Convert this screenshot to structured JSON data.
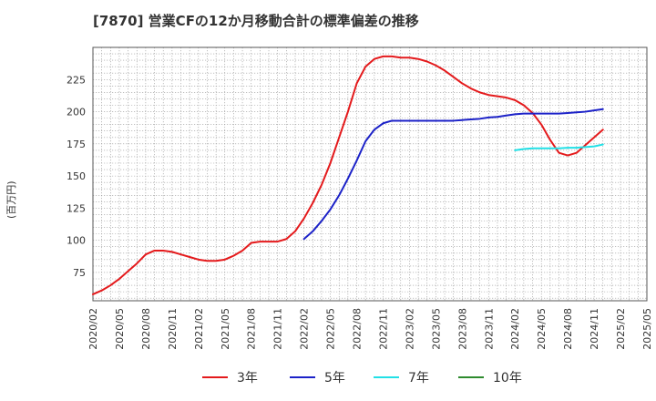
{
  "title": "[7870]  営業CFの12か月移動合計の標準偏差の推移",
  "chart_data": {
    "type": "line",
    "title": "[7870]  営業CFの12か月移動合計の標準偏差の推移",
    "ylabel": "(百万円)",
    "xlabel": "",
    "ylim": [
      53,
      250
    ],
    "xlim": [
      "2020/02",
      "2025/05"
    ],
    "yticks": [
      75,
      100,
      125,
      150,
      175,
      200,
      225
    ],
    "xticks": [
      "2020/02",
      "2020/05",
      "2020/08",
      "2020/11",
      "2021/02",
      "2021/05",
      "2021/08",
      "2021/11",
      "2022/02",
      "2022/05",
      "2022/08",
      "2022/11",
      "2023/02",
      "2023/05",
      "2023/08",
      "2023/11",
      "2024/02",
      "2024/05",
      "2024/08",
      "2024/11",
      "2025/02",
      "2025/05"
    ],
    "grid": true,
    "legend_position": "bottom",
    "series": [
      {
        "name": "3年",
        "color": "#e41a1c",
        "points": [
          [
            "2020/02",
            58
          ],
          [
            "2020/03",
            61
          ],
          [
            "2020/04",
            65
          ],
          [
            "2020/05",
            70
          ],
          [
            "2020/06",
            76
          ],
          [
            "2020/07",
            82
          ],
          [
            "2020/08",
            89
          ],
          [
            "2020/09",
            92
          ],
          [
            "2020/10",
            92
          ],
          [
            "2020/11",
            91
          ],
          [
            "2020/12",
            89
          ],
          [
            "2021/01",
            87
          ],
          [
            "2021/02",
            85
          ],
          [
            "2021/03",
            84
          ],
          [
            "2021/04",
            84
          ],
          [
            "2021/05",
            85
          ],
          [
            "2021/06",
            88
          ],
          [
            "2021/07",
            92
          ],
          [
            "2021/08",
            98
          ],
          [
            "2021/09",
            99
          ],
          [
            "2021/10",
            99
          ],
          [
            "2021/11",
            99
          ],
          [
            "2021/12",
            101
          ],
          [
            "2022/01",
            107
          ],
          [
            "2022/02",
            117
          ],
          [
            "2022/03",
            129
          ],
          [
            "2022/04",
            143
          ],
          [
            "2022/05",
            160
          ],
          [
            "2022/06",
            180
          ],
          [
            "2022/07",
            200
          ],
          [
            "2022/08",
            222
          ],
          [
            "2022/09",
            235
          ],
          [
            "2022/10",
            241
          ],
          [
            "2022/11",
            243
          ],
          [
            "2022/12",
            243
          ],
          [
            "2023/01",
            242
          ],
          [
            "2023/02",
            242
          ],
          [
            "2023/03",
            241
          ],
          [
            "2023/04",
            239
          ],
          [
            "2023/05",
            236
          ],
          [
            "2023/06",
            232
          ],
          [
            "2023/07",
            227
          ],
          [
            "2023/08",
            222
          ],
          [
            "2023/09",
            218
          ],
          [
            "2023/10",
            215
          ],
          [
            "2023/11",
            213
          ],
          [
            "2023/12",
            212
          ],
          [
            "2024/01",
            211
          ],
          [
            "2024/02",
            209
          ],
          [
            "2024/03",
            205
          ],
          [
            "2024/04",
            199
          ],
          [
            "2024/05",
            190
          ],
          [
            "2024/06",
            178
          ],
          [
            "2024/07",
            168
          ],
          [
            "2024/08",
            166
          ],
          [
            "2024/09",
            168
          ],
          [
            "2024/10",
            174
          ],
          [
            "2024/11",
            180
          ],
          [
            "2024/12",
            186
          ]
        ]
      },
      {
        "name": "5年",
        "color": "#1c22c8",
        "points": [
          [
            "2022/02",
            101
          ],
          [
            "2022/03",
            107
          ],
          [
            "2022/04",
            115
          ],
          [
            "2022/05",
            124
          ],
          [
            "2022/06",
            135
          ],
          [
            "2022/07",
            148
          ],
          [
            "2022/08",
            162
          ],
          [
            "2022/09",
            177
          ],
          [
            "2022/10",
            186
          ],
          [
            "2022/11",
            191
          ],
          [
            "2022/12",
            193
          ],
          [
            "2023/01",
            193
          ],
          [
            "2023/02",
            193
          ],
          [
            "2023/03",
            193
          ],
          [
            "2023/04",
            193
          ],
          [
            "2023/05",
            193
          ],
          [
            "2023/06",
            193
          ],
          [
            "2023/07",
            193
          ],
          [
            "2023/08",
            193.5
          ],
          [
            "2023/09",
            194
          ],
          [
            "2023/10",
            194.5
          ],
          [
            "2023/11",
            195.5
          ],
          [
            "2023/12",
            196
          ],
          [
            "2024/01",
            197
          ],
          [
            "2024/02",
            198
          ],
          [
            "2024/03",
            198.5
          ],
          [
            "2024/04",
            198.5
          ],
          [
            "2024/05",
            198.5
          ],
          [
            "2024/06",
            198.5
          ],
          [
            "2024/07",
            198.5
          ],
          [
            "2024/08",
            199
          ],
          [
            "2024/09",
            199.5
          ],
          [
            "2024/10",
            200
          ],
          [
            "2024/11",
            201
          ],
          [
            "2024/12",
            202
          ]
        ]
      },
      {
        "name": "7年",
        "color": "#22e0e6",
        "points": [
          [
            "2024/02",
            170
          ],
          [
            "2024/03",
            171
          ],
          [
            "2024/04",
            171.5
          ],
          [
            "2024/05",
            171.5
          ],
          [
            "2024/06",
            171.5
          ],
          [
            "2024/07",
            171.5
          ],
          [
            "2024/08",
            172
          ],
          [
            "2024/09",
            172
          ],
          [
            "2024/10",
            172.5
          ],
          [
            "2024/11",
            173
          ],
          [
            "2024/12",
            174.5
          ]
        ]
      },
      {
        "name": "10年",
        "color": "#2e8b2e",
        "points": []
      }
    ]
  }
}
